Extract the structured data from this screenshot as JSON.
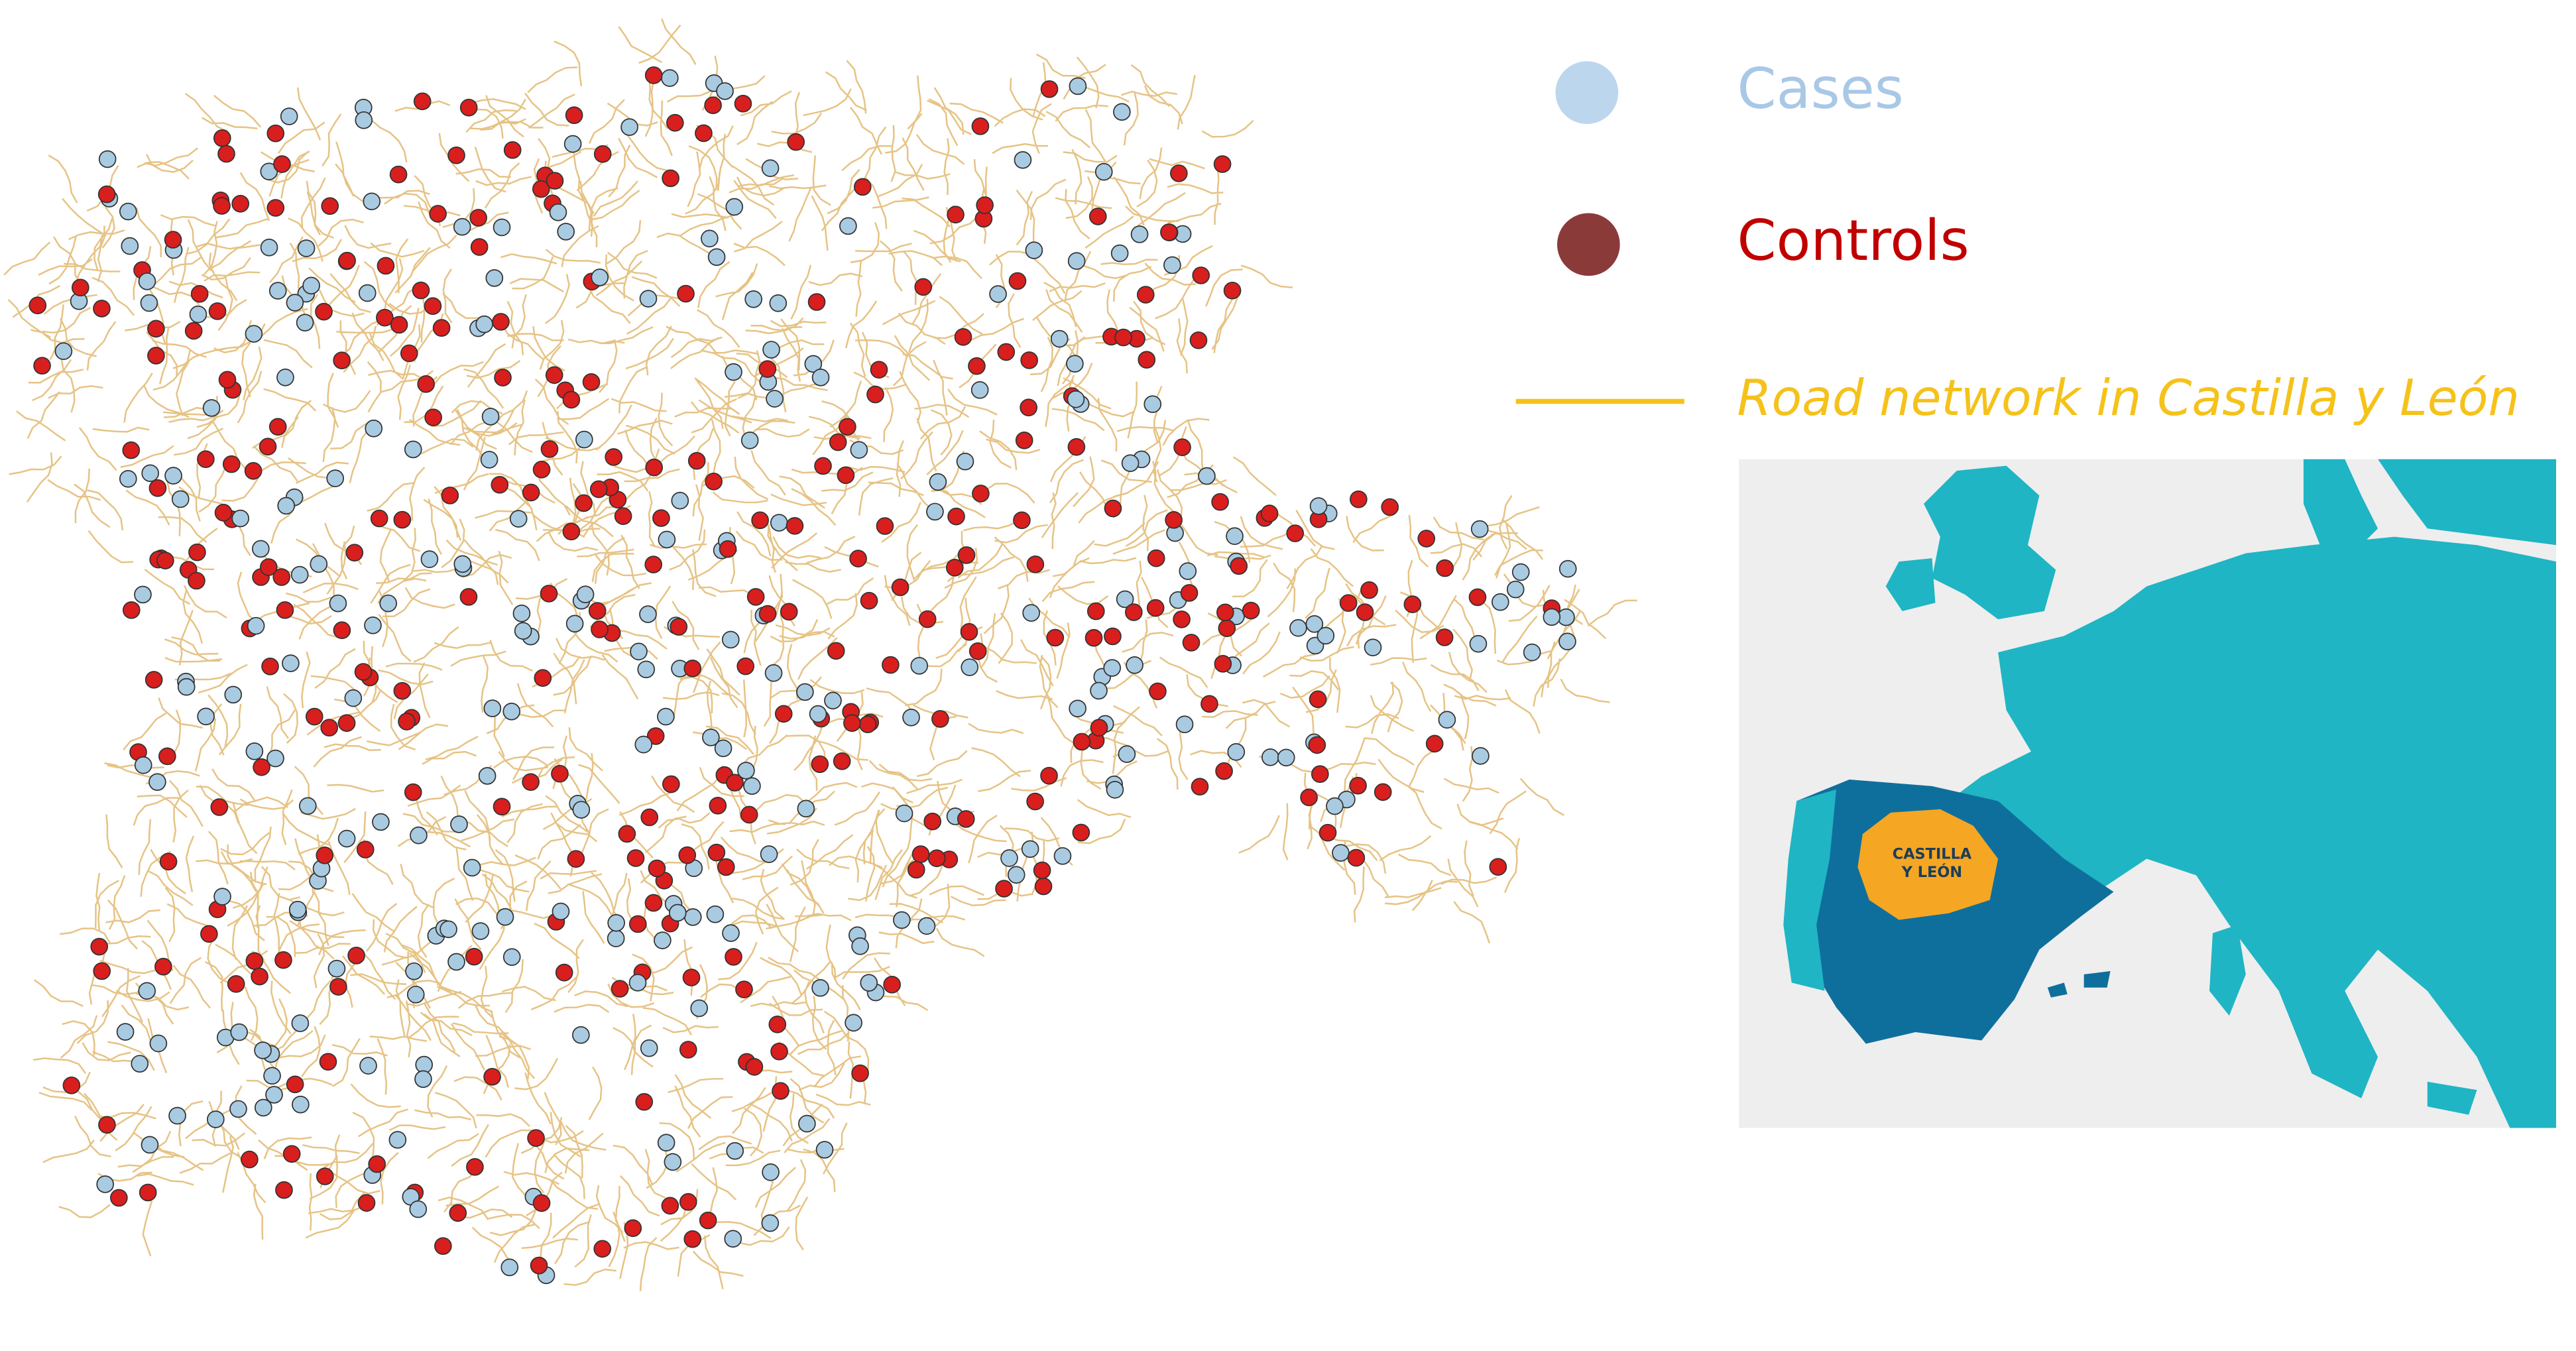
{
  "legend": {
    "items": [
      {
        "label": "Cases"
      },
      {
        "label": "Controls"
      },
      {
        "label": "Road network in Castilla y León"
      }
    ]
  },
  "inset": {
    "label_lines": [
      "CASTILLA",
      "Y LEÓN"
    ]
  }
}
